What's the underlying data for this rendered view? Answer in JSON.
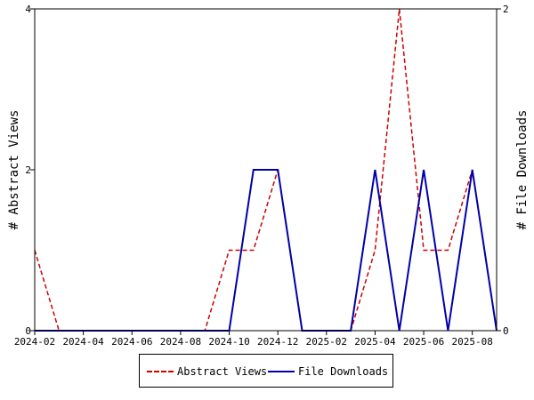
{
  "chart_data": {
    "type": "line",
    "x": [
      "2024-02",
      "2024-03",
      "2024-04",
      "2024-05",
      "2024-06",
      "2024-07",
      "2024-08",
      "2024-09",
      "2024-10",
      "2024-11",
      "2024-12",
      "2025-01",
      "2025-02",
      "2025-03",
      "2025-04",
      "2025-05",
      "2025-06",
      "2025-07",
      "2025-08",
      "2025-09"
    ],
    "x_tick_labels": [
      "2024-02",
      "2024-04",
      "2024-06",
      "2024-08",
      "2024-10",
      "2024-12",
      "2025-02",
      "2025-04",
      "2025-06",
      "2025-08"
    ],
    "ylabel": "# Abstract Views",
    "y2label": "# File Downloads",
    "ylim": [
      0,
      4
    ],
    "y2lim": [
      0,
      2
    ],
    "y_ticks": [
      0,
      2,
      4
    ],
    "y2_ticks": [
      0,
      2
    ],
    "series": [
      {
        "name": "Abstract Views",
        "axis": "left",
        "color": "#cc0000",
        "style": "dashed",
        "values": [
          1,
          0,
          0,
          0,
          0,
          0,
          0,
          0,
          1,
          1,
          2,
          0,
          0,
          0,
          1,
          4,
          1,
          1,
          2,
          0
        ]
      },
      {
        "name": "File Downloads",
        "axis": "right",
        "color": "#0000aa",
        "style": "solid",
        "values": [
          0,
          0,
          0,
          0,
          0,
          0,
          0,
          0,
          0,
          1,
          1,
          0,
          0,
          0,
          1,
          0,
          1,
          0,
          1,
          0
        ]
      }
    ],
    "legend_position": "bottom"
  }
}
